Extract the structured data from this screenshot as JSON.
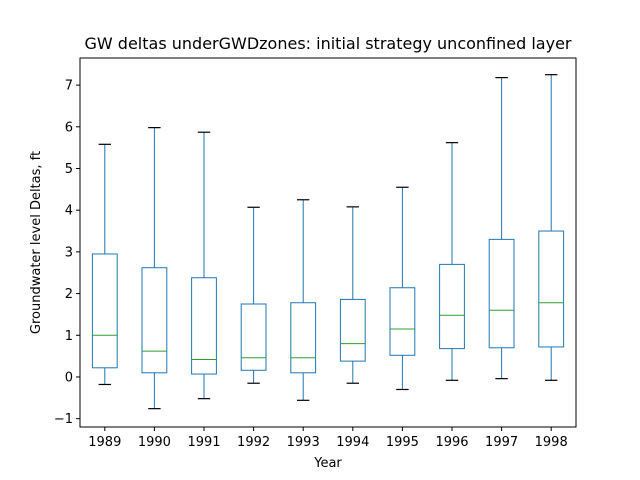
{
  "chart_data": {
    "type": "box",
    "title": "GW deltas underGWDzones: initial strategy unconfined layer",
    "xlabel": "Year",
    "ylabel": "Groundwater level Deltas, ft",
    "ylim": [
      -1.2,
      7.65
    ],
    "yticks": [
      -1,
      0,
      1,
      2,
      3,
      4,
      5,
      6,
      7
    ],
    "grid": false,
    "colors": {
      "box": "#1f77b4",
      "median": "#2ca02c",
      "cap": "#000000",
      "axis": "#000000"
    },
    "categories": [
      "1989",
      "1990",
      "1991",
      "1992",
      "1993",
      "1994",
      "1995",
      "1996",
      "1997",
      "1998"
    ],
    "boxes": [
      {
        "x": "1989",
        "whislo": -0.18,
        "q1": 0.22,
        "med": 1.0,
        "q3": 2.95,
        "whishi": 5.58
      },
      {
        "x": "1990",
        "whislo": -0.76,
        "q1": 0.1,
        "med": 0.62,
        "q3": 2.62,
        "whishi": 5.98
      },
      {
        "x": "1991",
        "whislo": -0.52,
        "q1": 0.07,
        "med": 0.42,
        "q3": 2.38,
        "whishi": 5.87
      },
      {
        "x": "1992",
        "whislo": -0.15,
        "q1": 0.16,
        "med": 0.46,
        "q3": 1.75,
        "whishi": 4.07
      },
      {
        "x": "1993",
        "whislo": -0.56,
        "q1": 0.1,
        "med": 0.46,
        "q3": 1.78,
        "whishi": 4.25
      },
      {
        "x": "1994",
        "whislo": -0.15,
        "q1": 0.38,
        "med": 0.8,
        "q3": 1.86,
        "whishi": 4.08
      },
      {
        "x": "1995",
        "whislo": -0.3,
        "q1": 0.52,
        "med": 1.15,
        "q3": 2.14,
        "whishi": 4.55
      },
      {
        "x": "1996",
        "whislo": -0.08,
        "q1": 0.68,
        "med": 1.48,
        "q3": 2.7,
        "whishi": 5.62
      },
      {
        "x": "1997",
        "whislo": -0.04,
        "q1": 0.7,
        "med": 1.6,
        "q3": 3.3,
        "whishi": 7.18
      },
      {
        "x": "1998",
        "whislo": -0.08,
        "q1": 0.72,
        "med": 1.78,
        "q3": 3.5,
        "whishi": 7.25
      }
    ]
  }
}
